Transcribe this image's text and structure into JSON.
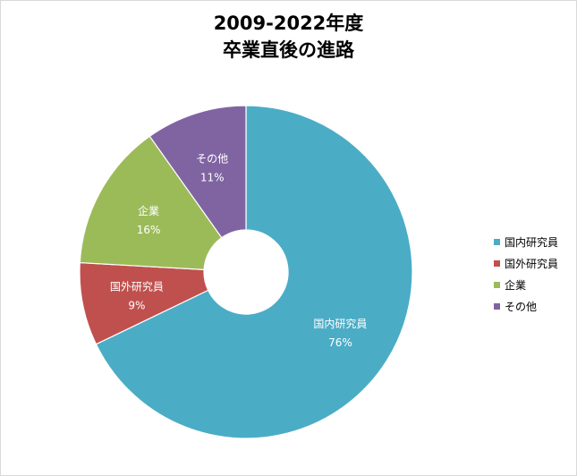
{
  "chart_data": {
    "type": "pie",
    "title_lines": [
      "2009-2022年度",
      "卒業直後の進路"
    ],
    "categories": [
      "国内研究員",
      "国外研究員",
      "企業",
      "その他"
    ],
    "values": [
      76,
      9,
      16,
      11
    ],
    "value_labels": [
      "76%",
      "9%",
      "16%",
      "11%"
    ],
    "colors": [
      "#4bacc6",
      "#c0504d",
      "#9bbb59",
      "#8064a2"
    ],
    "legend_position": "right",
    "style": "doughnut"
  }
}
